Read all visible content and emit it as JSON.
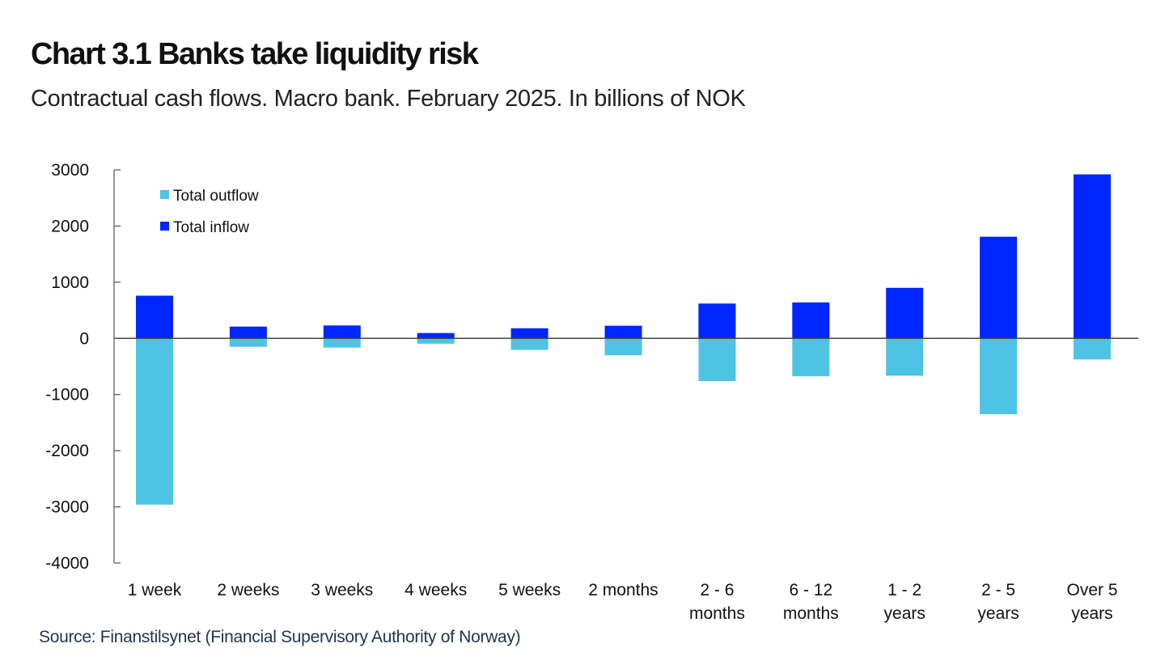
{
  "header": {
    "title": "Chart 3.1 Banks take liquidity risk",
    "subtitle": "Contractual cash flows. Macro bank. February 2025. In billions of NOK"
  },
  "footer": {
    "source": "Source: Finanstilsynet (Financial Supervisory Authority of Norway)"
  },
  "chart_data": {
    "type": "bar",
    "stacked": true,
    "title": "Chart 3.1 Banks take liquidity risk",
    "subtitle": "Contractual cash flows. Macro bank. February 2025. In billions of NOK",
    "xlabel": "",
    "ylabel": "",
    "ylim": [
      -4000,
      3000
    ],
    "yticks": [
      3000,
      2000,
      1000,
      0,
      -1000,
      -2000,
      -3000,
      -4000
    ],
    "grid": false,
    "legend_position": "top-left",
    "categories": [
      [
        "1 week"
      ],
      [
        "2 weeks"
      ],
      [
        "3 weeks"
      ],
      [
        "4 weeks"
      ],
      [
        "5 weeks"
      ],
      [
        "2 months"
      ],
      [
        "2 - 6",
        "months"
      ],
      [
        "6 - 12",
        "months"
      ],
      [
        "1 - 2",
        "years"
      ],
      [
        "2 - 5",
        "years"
      ],
      [
        "Over 5",
        "years"
      ]
    ],
    "series": [
      {
        "name": "Total outflow",
        "color": "#4fc3e3",
        "values": [
          -2960,
          -150,
          -165,
          -95,
          -205,
          -300,
          -760,
          -675,
          -665,
          -1350,
          -375
        ]
      },
      {
        "name": "Total inflow",
        "color": "#0026ff",
        "values": [
          760,
          210,
          230,
          95,
          180,
          225,
          620,
          640,
          900,
          1810,
          2920
        ]
      }
    ],
    "source": "Source: Finanstilsynet (Financial Supervisory Authority of Norway)"
  }
}
